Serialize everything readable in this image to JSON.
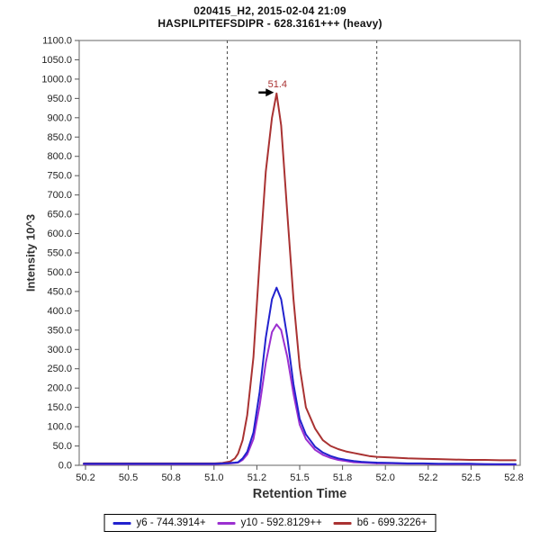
{
  "header": {
    "title_line1": "020415_H2, 2015-02-04 21:09",
    "title_line2": "HASPILPITEFSDIPR - 628.3161+++ (heavy)"
  },
  "axes": {
    "x_label": "Retention Time",
    "y_label": "Intensity 10^3"
  },
  "legend": {
    "items": [
      {
        "id": "y6",
        "label": "y6 - 744.3914+",
        "color": "#2222CE"
      },
      {
        "id": "y10",
        "label": "y10 - 592.8129++",
        "color": "#9B30D0"
      },
      {
        "id": "b6",
        "label": "b6 - 699.3226+",
        "color": "#A93232"
      }
    ]
  },
  "chart_data": {
    "type": "line",
    "title": "020415_H2, 2015-02-04 21:09 — HASPILPITEFSDIPR - 628.3161+++ (heavy)",
    "xlabel": "Retention Time",
    "ylabel": "Intensity 10^3",
    "xlim": [
      50.07,
      52.93
    ],
    "ylim": [
      0,
      1100
    ],
    "grid": false,
    "legend_position": "bottom",
    "x_ticks": [
      "50.2",
      "50.5",
      "50.8",
      "51.0",
      "51.2",
      "51.5",
      "51.8",
      "52.0",
      "52.2",
      "52.5",
      "52.8"
    ],
    "y_ticks": [
      "0.0",
      "50.0",
      "100.0",
      "150.0",
      "200.0",
      "250.0",
      "300.0",
      "350.0",
      "400.0",
      "450.0",
      "500.0",
      "550.0",
      "600.0",
      "650.0",
      "700.0",
      "750.0",
      "800.0",
      "850.0",
      "900.0",
      "950.0",
      "1000.0",
      "1050.0",
      "1100.0"
    ],
    "peak_boundaries": [
      51.03,
      52.0
    ],
    "peak_annotation": {
      "text": "51.4",
      "x": 51.35,
      "y": 963,
      "color": "#A93232"
    },
    "x": [
      50.1,
      50.2,
      50.3,
      50.4,
      50.5,
      50.6,
      50.7,
      50.8,
      50.9,
      50.95,
      51.0,
      51.05,
      51.08,
      51.1,
      51.13,
      51.16,
      51.2,
      51.24,
      51.28,
      51.32,
      51.35,
      51.38,
      51.42,
      51.46,
      51.5,
      51.54,
      51.6,
      51.65,
      51.7,
      51.75,
      51.8,
      51.85,
      51.9,
      51.95,
      52.0,
      52.1,
      52.2,
      52.3,
      52.4,
      52.5,
      52.6,
      52.7,
      52.8,
      52.9
    ],
    "series": [
      {
        "name": "y6 - 744.3914+",
        "color": "#2222CE",
        "values": [
          4,
          4,
          4,
          4,
          4,
          4,
          4,
          4,
          4,
          4,
          5,
          6,
          7,
          8,
          18,
          35,
          85,
          190,
          330,
          430,
          460,
          430,
          330,
          210,
          120,
          80,
          48,
          33,
          24,
          18,
          14,
          11,
          9,
          8,
          7,
          6,
          5,
          5,
          4,
          4,
          4,
          3,
          3,
          3
        ]
      },
      {
        "name": "y10 - 592.8129++",
        "color": "#9B30D0",
        "values": [
          3,
          3,
          3,
          3,
          3,
          3,
          3,
          3,
          3,
          3,
          4,
          5,
          6,
          7,
          14,
          28,
          68,
          155,
          265,
          345,
          365,
          350,
          280,
          185,
          105,
          68,
          40,
          27,
          19,
          14,
          11,
          8,
          7,
          6,
          5,
          5,
          4,
          4,
          3,
          3,
          3,
          3,
          2,
          2
        ]
      },
      {
        "name": "b6 - 699.3226+",
        "color": "#A93232",
        "values": [
          5,
          5,
          5,
          5,
          5,
          5,
          5,
          5,
          5,
          5,
          6,
          10,
          18,
          30,
          65,
          130,
          280,
          530,
          760,
          900,
          963,
          880,
          650,
          430,
          255,
          150,
          95,
          65,
          50,
          42,
          36,
          32,
          28,
          24,
          22,
          20,
          18,
          17,
          16,
          15,
          14,
          14,
          13,
          13
        ]
      }
    ]
  }
}
